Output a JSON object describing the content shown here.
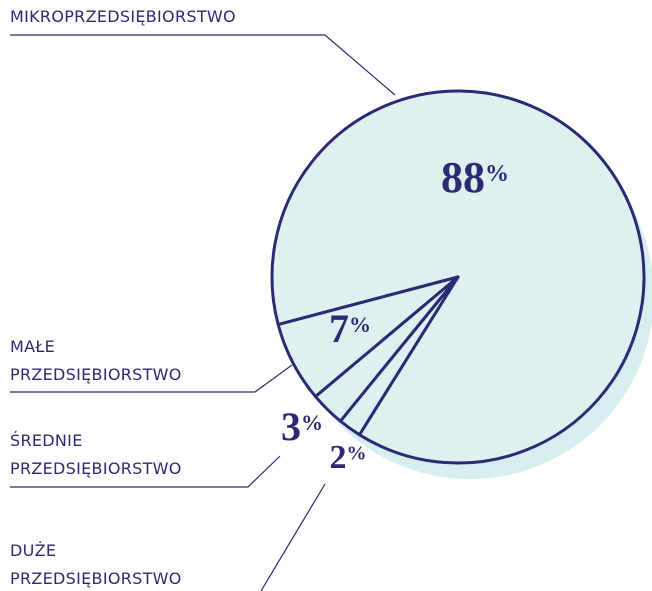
{
  "chart_data": {
    "type": "pie",
    "categories": [
      "MIKROPRZEDSIĘBIORSTWO",
      "MAŁE PRZEDSIĘBIORSTWO",
      "ŚREDNIE PRZEDSIĘBIORSTWO",
      "DUŻE PRZEDSIĘBIORSTWO"
    ],
    "values": [
      88,
      7,
      3,
      2
    ],
    "value_labels": [
      "88%",
      "7%",
      "3%",
      "2%"
    ],
    "color": "#dff0f0",
    "edge_color": "#2b2a72"
  }
}
